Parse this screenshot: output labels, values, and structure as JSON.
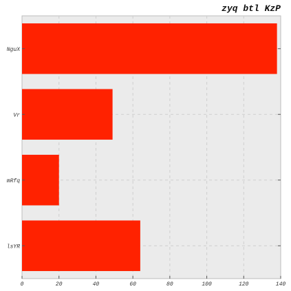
{
  "chart_data": {
    "type": "bar",
    "orientation": "horizontal",
    "title": "zyq  btl KzP",
    "xlabel": "",
    "ylabel": "",
    "categories": [
      "NguX",
      "Vr",
      "mRfq",
      "lsYR"
    ],
    "values": [
      138,
      49,
      20,
      64
    ],
    "xlim": [
      0,
      140
    ],
    "xticks": [
      0,
      20,
      40,
      60,
      80,
      100,
      120,
      140
    ],
    "grid": true,
    "bar_color": "#ff2200",
    "plot_background": "#ebebeb",
    "grid_color": "#cfcfcf"
  }
}
